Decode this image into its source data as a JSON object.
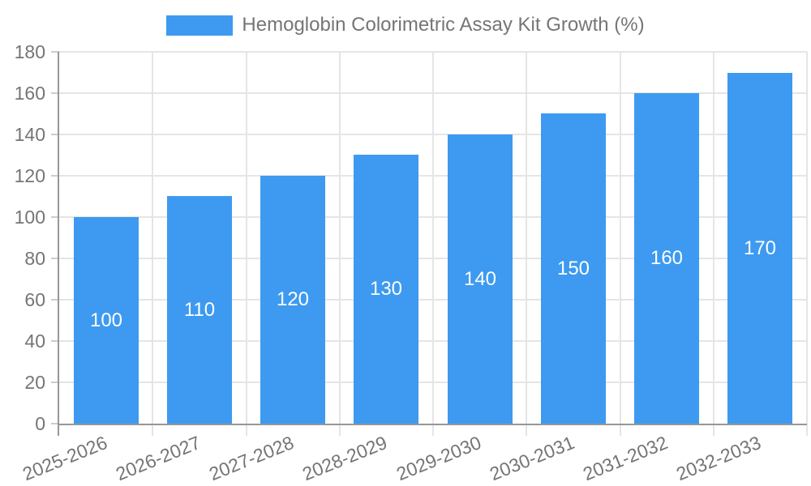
{
  "legend": {
    "label": "Hemoglobin Colorimetric Assay Kit Growth (%)"
  },
  "chart_data": {
    "type": "bar",
    "title": "Hemoglobin Colorimetric Assay Kit Growth (%)",
    "categories": [
      "2025-2026",
      "2026-2027",
      "2027-2028",
      "2028-2029",
      "2029-2030",
      "2030-2031",
      "2031-2032",
      "2032-2033"
    ],
    "values": [
      100,
      110,
      120,
      130,
      140,
      150,
      160,
      170
    ],
    "value_labels": [
      "100",
      "110",
      "120",
      "130",
      "140",
      "150",
      "160",
      "170"
    ],
    "value_label_position": "inside-center",
    "xlabel": "",
    "ylabel": "",
    "ylim": [
      0,
      180
    ],
    "yticks": [
      0,
      20,
      40,
      60,
      80,
      100,
      120,
      140,
      160,
      180
    ],
    "grid": true,
    "legend_position": "top-center",
    "x_label_rotation_deg": -22,
    "colors": {
      "bar": "#3d9af0",
      "grid": "#e5e5e5",
      "tick": "#cccccc",
      "axis": "#979797",
      "text": "#757575",
      "value_label": "#ffffff",
      "background": "#ffffff"
    }
  }
}
